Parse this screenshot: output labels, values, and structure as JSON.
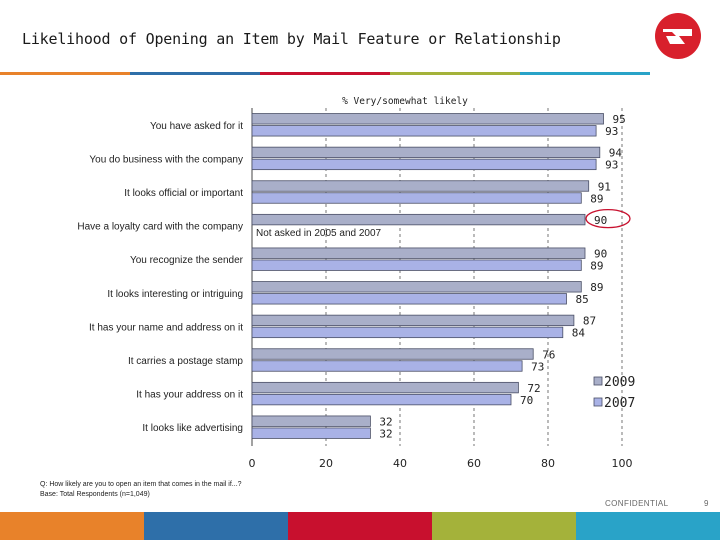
{
  "page": {
    "title": "Likelihood of Opening an Item by Mail Feature or Relationship",
    "footnote_question": "Q: How likely are you to open an item that comes in the mail if...?",
    "footnote_base": "Base: Total Respondents (n=1,049)",
    "confidential": "CONFIDENTIAL",
    "page_number": "9",
    "band_colors": [
      "#e8822a",
      "#2e6fa9",
      "#c8102e",
      "#a4b23a",
      "#29a3c8"
    ]
  },
  "chart_data": {
    "type": "bar",
    "orientation": "horizontal",
    "subtitle": "% Very/somewhat likely",
    "categories": [
      "You have asked for it",
      "You do business with the company",
      "It looks official or important",
      "Have a loyalty card with the company",
      "You recognize the sender",
      "It looks interesting or intriguing",
      "It has your name and address on it",
      "It carries a postage stamp",
      "It has your address on it",
      "It looks like advertising"
    ],
    "series": [
      {
        "name": "2009",
        "values": [
          95,
          94,
          91,
          90,
          90,
          89,
          87,
          76,
          72,
          32
        ],
        "color": "#a9afc9"
      },
      {
        "name": "2007",
        "values": [
          93,
          93,
          89,
          null,
          89,
          85,
          84,
          73,
          70,
          32
        ],
        "color": "#a9b2e6"
      }
    ],
    "xlim": [
      0,
      100
    ],
    "xticks": [
      0,
      20,
      40,
      60,
      80,
      100
    ],
    "annotation": "Not asked in 2005 and 2007",
    "highlight": {
      "category_index": 3,
      "series": "2009",
      "color": "#c8102e"
    },
    "legend_position": "bottom-right",
    "grid": "dashed vertical"
  }
}
